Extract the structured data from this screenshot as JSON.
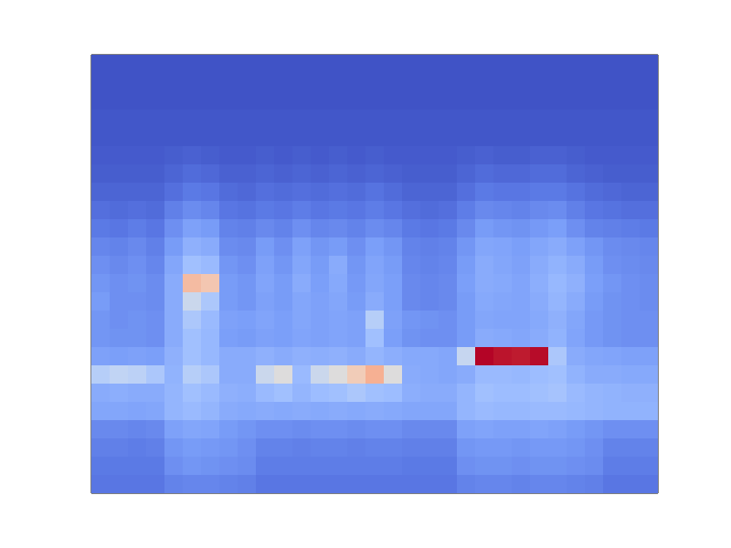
{
  "chart_data": {
    "type": "heatmap",
    "tick_labels": false,
    "zlim": [
      0,
      1
    ],
    "cells": [
      [
        0.02,
        0.02,
        0.02,
        0.02,
        0.02,
        0.02,
        0.02,
        0.02,
        0.02,
        0.02,
        0.02,
        0.02,
        0.02,
        0.02,
        0.02,
        0.02,
        0.02,
        0.02,
        0.02,
        0.02,
        0.02,
        0.02,
        0.02,
        0.02,
        0.02,
        0.02,
        0.02,
        0.02,
        0.02,
        0.02,
        0.02
      ],
      [
        0.02,
        0.02,
        0.02,
        0.02,
        0.02,
        0.02,
        0.02,
        0.02,
        0.02,
        0.02,
        0.02,
        0.02,
        0.02,
        0.02,
        0.02,
        0.02,
        0.02,
        0.02,
        0.02,
        0.02,
        0.02,
        0.02,
        0.02,
        0.02,
        0.02,
        0.02,
        0.02,
        0.02,
        0.02,
        0.02,
        0.02
      ],
      [
        0.02,
        0.02,
        0.02,
        0.02,
        0.02,
        0.02,
        0.02,
        0.02,
        0.02,
        0.02,
        0.02,
        0.02,
        0.02,
        0.02,
        0.02,
        0.02,
        0.02,
        0.02,
        0.02,
        0.02,
        0.02,
        0.02,
        0.02,
        0.02,
        0.02,
        0.02,
        0.02,
        0.02,
        0.02,
        0.02,
        0.02
      ],
      [
        0.03,
        0.03,
        0.03,
        0.03,
        0.03,
        0.03,
        0.03,
        0.03,
        0.03,
        0.03,
        0.03,
        0.03,
        0.03,
        0.03,
        0.03,
        0.03,
        0.03,
        0.03,
        0.03,
        0.03,
        0.03,
        0.03,
        0.03,
        0.03,
        0.03,
        0.03,
        0.03,
        0.03,
        0.03,
        0.03,
        0.03
      ],
      [
        0.03,
        0.03,
        0.03,
        0.03,
        0.03,
        0.03,
        0.03,
        0.03,
        0.03,
        0.03,
        0.03,
        0.03,
        0.03,
        0.03,
        0.03,
        0.03,
        0.03,
        0.03,
        0.03,
        0.03,
        0.03,
        0.03,
        0.03,
        0.03,
        0.03,
        0.03,
        0.03,
        0.03,
        0.03,
        0.03,
        0.03
      ],
      [
        0.04,
        0.04,
        0.04,
        0.04,
        0.05,
        0.06,
        0.05,
        0.04,
        0.04,
        0.05,
        0.04,
        0.05,
        0.04,
        0.05,
        0.04,
        0.05,
        0.04,
        0.04,
        0.04,
        0.04,
        0.05,
        0.06,
        0.05,
        0.05,
        0.06,
        0.06,
        0.05,
        0.04,
        0.04,
        0.04,
        0.04
      ],
      [
        0.05,
        0.05,
        0.05,
        0.05,
        0.07,
        0.09,
        0.08,
        0.06,
        0.06,
        0.07,
        0.06,
        0.07,
        0.06,
        0.07,
        0.06,
        0.07,
        0.06,
        0.05,
        0.05,
        0.05,
        0.07,
        0.09,
        0.08,
        0.08,
        0.09,
        0.09,
        0.07,
        0.06,
        0.05,
        0.05,
        0.05
      ],
      [
        0.07,
        0.07,
        0.07,
        0.07,
        0.1,
        0.13,
        0.12,
        0.09,
        0.08,
        0.1,
        0.09,
        0.1,
        0.09,
        0.1,
        0.09,
        0.11,
        0.09,
        0.07,
        0.07,
        0.07,
        0.1,
        0.13,
        0.12,
        0.12,
        0.13,
        0.13,
        0.11,
        0.09,
        0.08,
        0.07,
        0.07
      ],
      [
        0.1,
        0.09,
        0.1,
        0.09,
        0.15,
        0.19,
        0.17,
        0.12,
        0.11,
        0.13,
        0.12,
        0.14,
        0.12,
        0.13,
        0.12,
        0.14,
        0.12,
        0.1,
        0.09,
        0.1,
        0.14,
        0.18,
        0.17,
        0.16,
        0.18,
        0.19,
        0.15,
        0.12,
        0.11,
        0.1,
        0.1
      ],
      [
        0.13,
        0.12,
        0.14,
        0.12,
        0.2,
        0.26,
        0.24,
        0.16,
        0.15,
        0.18,
        0.16,
        0.2,
        0.17,
        0.18,
        0.16,
        0.19,
        0.17,
        0.13,
        0.12,
        0.13,
        0.18,
        0.24,
        0.22,
        0.21,
        0.23,
        0.25,
        0.2,
        0.16,
        0.15,
        0.14,
        0.13
      ],
      [
        0.17,
        0.16,
        0.18,
        0.15,
        0.24,
        0.32,
        0.3,
        0.19,
        0.18,
        0.24,
        0.2,
        0.26,
        0.22,
        0.24,
        0.2,
        0.25,
        0.22,
        0.16,
        0.15,
        0.16,
        0.22,
        0.28,
        0.27,
        0.25,
        0.28,
        0.3,
        0.26,
        0.22,
        0.19,
        0.18,
        0.17
      ],
      [
        0.2,
        0.18,
        0.2,
        0.17,
        0.28,
        0.38,
        0.36,
        0.22,
        0.2,
        0.26,
        0.22,
        0.28,
        0.24,
        0.3,
        0.22,
        0.27,
        0.24,
        0.17,
        0.16,
        0.17,
        0.24,
        0.3,
        0.28,
        0.26,
        0.3,
        0.33,
        0.3,
        0.24,
        0.2,
        0.19,
        0.18
      ],
      [
        0.22,
        0.2,
        0.21,
        0.19,
        0.3,
        0.62,
        0.58,
        0.24,
        0.22,
        0.27,
        0.24,
        0.3,
        0.25,
        0.29,
        0.23,
        0.28,
        0.25,
        0.18,
        0.17,
        0.18,
        0.25,
        0.3,
        0.29,
        0.27,
        0.31,
        0.35,
        0.32,
        0.25,
        0.22,
        0.2,
        0.19
      ],
      [
        0.24,
        0.2,
        0.2,
        0.19,
        0.3,
        0.46,
        0.4,
        0.24,
        0.22,
        0.26,
        0.24,
        0.28,
        0.26,
        0.28,
        0.24,
        0.3,
        0.25,
        0.18,
        0.17,
        0.18,
        0.24,
        0.29,
        0.28,
        0.27,
        0.3,
        0.34,
        0.3,
        0.24,
        0.21,
        0.2,
        0.19
      ],
      [
        0.22,
        0.2,
        0.21,
        0.2,
        0.3,
        0.4,
        0.36,
        0.26,
        0.25,
        0.27,
        0.25,
        0.28,
        0.26,
        0.27,
        0.26,
        0.42,
        0.26,
        0.22,
        0.21,
        0.2,
        0.24,
        0.28,
        0.27,
        0.27,
        0.29,
        0.32,
        0.28,
        0.23,
        0.21,
        0.2,
        0.2
      ],
      [
        0.22,
        0.21,
        0.21,
        0.2,
        0.3,
        0.38,
        0.35,
        0.25,
        0.24,
        0.26,
        0.25,
        0.27,
        0.26,
        0.27,
        0.26,
        0.38,
        0.25,
        0.21,
        0.2,
        0.2,
        0.24,
        0.3,
        0.29,
        0.28,
        0.3,
        0.33,
        0.27,
        0.23,
        0.21,
        0.2,
        0.2
      ],
      [
        0.26,
        0.25,
        0.26,
        0.25,
        0.32,
        0.38,
        0.35,
        0.3,
        0.3,
        0.32,
        0.3,
        0.32,
        0.31,
        0.32,
        0.3,
        0.34,
        0.31,
        0.29,
        0.29,
        0.28,
        0.45,
        1.0,
        0.98,
        0.97,
        0.99,
        0.4,
        0.3,
        0.28,
        0.27,
        0.26,
        0.26
      ],
      [
        0.42,
        0.44,
        0.43,
        0.4,
        0.33,
        0.42,
        0.4,
        0.3,
        0.3,
        0.46,
        0.5,
        0.36,
        0.46,
        0.5,
        0.56,
        0.66,
        0.5,
        0.3,
        0.29,
        0.28,
        0.3,
        0.36,
        0.36,
        0.35,
        0.37,
        0.38,
        0.33,
        0.3,
        0.3,
        0.29,
        0.29
      ],
      [
        0.3,
        0.31,
        0.3,
        0.3,
        0.34,
        0.38,
        0.36,
        0.32,
        0.31,
        0.36,
        0.38,
        0.34,
        0.37,
        0.38,
        0.4,
        0.38,
        0.37,
        0.31,
        0.3,
        0.3,
        0.34,
        0.38,
        0.37,
        0.37,
        0.38,
        0.39,
        0.36,
        0.34,
        0.33,
        0.32,
        0.32
      ],
      [
        0.28,
        0.28,
        0.27,
        0.28,
        0.34,
        0.36,
        0.34,
        0.3,
        0.29,
        0.3,
        0.29,
        0.3,
        0.29,
        0.3,
        0.29,
        0.3,
        0.29,
        0.28,
        0.28,
        0.28,
        0.34,
        0.36,
        0.35,
        0.35,
        0.36,
        0.36,
        0.35,
        0.34,
        0.33,
        0.33,
        0.33
      ],
      [
        0.18,
        0.18,
        0.17,
        0.18,
        0.26,
        0.28,
        0.27,
        0.24,
        0.22,
        0.2,
        0.2,
        0.19,
        0.2,
        0.2,
        0.19,
        0.2,
        0.2,
        0.18,
        0.18,
        0.18,
        0.26,
        0.27,
        0.26,
        0.26,
        0.27,
        0.26,
        0.24,
        0.22,
        0.2,
        0.2,
        0.2
      ],
      [
        0.15,
        0.15,
        0.14,
        0.15,
        0.22,
        0.24,
        0.23,
        0.22,
        0.2,
        0.16,
        0.16,
        0.15,
        0.16,
        0.16,
        0.15,
        0.16,
        0.16,
        0.15,
        0.15,
        0.15,
        0.22,
        0.23,
        0.23,
        0.22,
        0.23,
        0.23,
        0.22,
        0.2,
        0.16,
        0.16,
        0.16
      ],
      [
        0.13,
        0.13,
        0.13,
        0.13,
        0.2,
        0.22,
        0.21,
        0.2,
        0.19,
        0.14,
        0.14,
        0.14,
        0.14,
        0.14,
        0.14,
        0.14,
        0.14,
        0.13,
        0.13,
        0.13,
        0.2,
        0.21,
        0.21,
        0.2,
        0.21,
        0.21,
        0.2,
        0.19,
        0.14,
        0.14,
        0.14
      ],
      [
        0.12,
        0.12,
        0.12,
        0.12,
        0.16,
        0.17,
        0.17,
        0.16,
        0.15,
        0.12,
        0.12,
        0.12,
        0.12,
        0.12,
        0.12,
        0.12,
        0.12,
        0.12,
        0.12,
        0.12,
        0.16,
        0.17,
        0.17,
        0.16,
        0.17,
        0.17,
        0.16,
        0.15,
        0.12,
        0.12,
        0.12
      ]
    ]
  }
}
